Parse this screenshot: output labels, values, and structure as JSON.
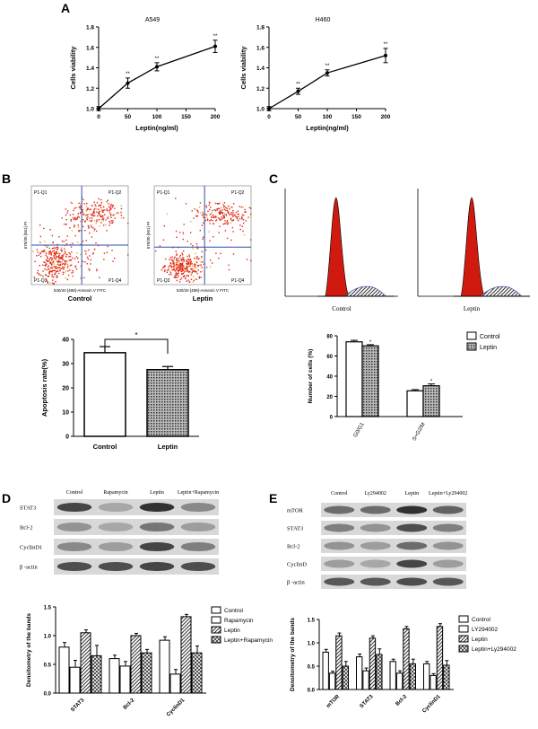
{
  "panels": {
    "A": "A",
    "B": "B",
    "C": "C",
    "D": "D",
    "E": "E"
  },
  "panelA": {
    "charts": [
      {
        "title": "A549",
        "xlabel": "Leptin(ng/ml)",
        "ylabel": "Cells viability",
        "x": [
          0,
          50,
          100,
          200
        ],
        "y": [
          1.0,
          1.25,
          1.41,
          1.61
        ],
        "err": [
          0.02,
          0.05,
          0.04,
          0.06
        ],
        "sig": [
          "",
          "**",
          "**",
          "**"
        ],
        "xlim": [
          0,
          200
        ],
        "ylim": [
          1.0,
          1.8
        ],
        "xticks": [
          "0",
          "50",
          "100",
          "150",
          "200"
        ],
        "yticks": [
          "1.0",
          "1.2",
          "1.4",
          "1.6",
          "1.8"
        ]
      },
      {
        "title": "H460",
        "xlabel": "Leptin(ng/ml)",
        "ylabel": "Cells viability",
        "x": [
          0,
          50,
          100,
          200
        ],
        "y": [
          1.0,
          1.17,
          1.35,
          1.52
        ],
        "err": [
          0.02,
          0.03,
          0.03,
          0.07
        ],
        "sig": [
          "",
          "**",
          "**",
          "**"
        ],
        "xlim": [
          0,
          200
        ],
        "ylim": [
          1.0,
          1.8
        ],
        "xticks": [
          "0",
          "50",
          "100",
          "150",
          "200"
        ],
        "yticks": [
          "1.0",
          "1.2",
          "1.4",
          "1.6",
          "1.8"
        ]
      }
    ]
  },
  "flow": {
    "quadrants": [
      "P1-Q1",
      "P1-Q2",
      "P1-Q3",
      "P1-Q4"
    ],
    "ylabel": "670/30 [561] PI",
    "xlabel": "530/40 [488]-Annexin V FITC",
    "labels": [
      "Control",
      "Leptin"
    ]
  },
  "apoptosis": {
    "chart_data": {
      "type": "bar",
      "categories": [
        "Control",
        "Leptin"
      ],
      "values": [
        34.5,
        27.5
      ],
      "err": [
        2.5,
        1.3
      ],
      "ylabel": "Apoptosis rate(%)",
      "ylim": [
        0,
        40
      ],
      "yticks": [
        "0",
        "10",
        "20",
        "30",
        "40"
      ],
      "sig": "*"
    }
  },
  "cellcycle": {
    "labels": [
      "Control",
      "Leptin"
    ],
    "chart_data": {
      "type": "bar",
      "categories": [
        "G0/G1",
        "S+G2/M"
      ],
      "series": [
        {
          "name": "Control",
          "values": [
            74,
            25.5
          ],
          "err": [
            1.5,
            1.2
          ]
        },
        {
          "name": "Leptin",
          "values": [
            70,
            30.5
          ],
          "err": [
            1.2,
            1.8
          ]
        }
      ],
      "ylabel": "Number of cells (%)",
      "ylim": [
        0,
        80
      ],
      "yticks": [
        "0",
        "20",
        "40",
        "60",
        "80"
      ],
      "sig": [
        "*",
        "*"
      ]
    }
  },
  "blotD": {
    "lanes": [
      "Control",
      "Rapamycin",
      "Leptin",
      "Leptin+Rapamycin"
    ],
    "rows": [
      "STAT3",
      "Bcl-2",
      "CyclinD1",
      "β -actin"
    ],
    "chart_data": {
      "type": "bar",
      "categories": [
        "STAT3",
        "Bcl-2",
        "CyclinD1"
      ],
      "series": [
        {
          "name": "Control",
          "values": [
            0.8,
            0.6,
            0.92
          ],
          "err": [
            0.08,
            0.06,
            0.06
          ]
        },
        {
          "name": "Rapamycin",
          "values": [
            0.45,
            0.47,
            0.33
          ],
          "err": [
            0.12,
            0.08,
            0.08
          ]
        },
        {
          "name": "Leptin",
          "values": [
            1.05,
            1.0,
            1.33
          ],
          "err": [
            0.05,
            0.04,
            0.04
          ]
        },
        {
          "name": "Leptin+Rapamycin",
          "values": [
            0.65,
            0.7,
            0.7
          ],
          "err": [
            0.18,
            0.06,
            0.12
          ]
        }
      ],
      "ylabel": "Densitometry of the bands",
      "ylim": [
        0,
        1.5
      ],
      "yticks": [
        "0.0",
        "0.5",
        "1.0",
        "1.5"
      ]
    }
  },
  "blotE": {
    "lanes": [
      "Control",
      "Ly294002",
      "Leptin",
      "Leptin+Ly294002"
    ],
    "rows": [
      "mTOR",
      "STAT3",
      "Bcl-2",
      "CyclinD",
      "β -actin"
    ],
    "chart_data": {
      "type": "bar",
      "categories": [
        "mTOR",
        "STAT3",
        "Bcl-2",
        "CyclinD1"
      ],
      "series": [
        {
          "name": "Control",
          "values": [
            0.8,
            0.7,
            0.6,
            0.55
          ],
          "err": [
            0.06,
            0.06,
            0.05,
            0.05
          ]
        },
        {
          "name": "LY294002",
          "values": [
            0.35,
            0.4,
            0.35,
            0.3
          ],
          "err": [
            0.04,
            0.06,
            0.05,
            0.04
          ]
        },
        {
          "name": "Leptin",
          "values": [
            1.15,
            1.1,
            1.3,
            1.35
          ],
          "err": [
            0.06,
            0.05,
            0.05,
            0.06
          ]
        },
        {
          "name": "Leptin+Ly294002",
          "values": [
            0.5,
            0.75,
            0.55,
            0.52
          ],
          "err": [
            0.1,
            0.12,
            0.1,
            0.1
          ]
        }
      ],
      "ylabel": "Densitometry of the bands",
      "ylim": [
        0,
        1.5
      ],
      "yticks": [
        "0.0",
        "0.5",
        "1.0",
        "1.5"
      ]
    }
  }
}
